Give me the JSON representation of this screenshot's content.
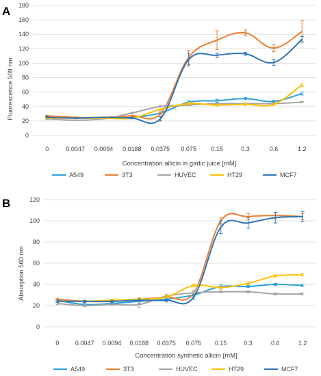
{
  "colors": {
    "A549": "#2f9fdc",
    "3T3": "#ee7d31",
    "HUVEC": "#a5a5a5",
    "HT29": "#ffc000",
    "MCF7": "#2e75b6",
    "grid": "#d9d9d9",
    "text": "#404040"
  },
  "chart_data": [
    {
      "type": "line",
      "panel_label": "A",
      "xlabel": "Concentration allicin in garlic juice [mM]",
      "ylabel": "Fluorescence 509 nm",
      "categories": [
        "0",
        "0.0047",
        "0.0094",
        "0.0188",
        "0.0375",
        "0.075",
        "0.15",
        "0.3",
        "0.6",
        "1.2"
      ],
      "ylim": [
        0,
        180
      ],
      "yticks": [
        0,
        20,
        40,
        60,
        80,
        100,
        120,
        140,
        160,
        180
      ],
      "grid": true,
      "legend_position": "bottom",
      "series": [
        {
          "name": "A549",
          "values": [
            26,
            24,
            24,
            25,
            31,
            46,
            48,
            51,
            47,
            58
          ],
          "errors": [
            1,
            0.5,
            0.5,
            1,
            1.5,
            2,
            2,
            1.5,
            1.5,
            2
          ]
        },
        {
          "name": "3T3",
          "values": [
            27,
            25,
            25,
            27,
            30,
            108,
            132,
            142,
            121,
            144
          ],
          "errors": [
            1,
            0.5,
            0.5,
            1,
            1.5,
            10,
            13,
            4,
            5,
            15
          ]
        },
        {
          "name": "HUVEC",
          "values": [
            23,
            21,
            23,
            31,
            40,
            42,
            44,
            44,
            44,
            46
          ],
          "errors": [
            1,
            0.5,
            0.5,
            1,
            1,
            1,
            1,
            1,
            1,
            1
          ]
        },
        {
          "name": "HT29",
          "values": [
            24,
            24,
            24,
            24,
            36,
            44,
            42,
            43,
            43,
            70
          ],
          "errors": [
            1,
            0.5,
            0.5,
            1,
            1,
            2,
            1.5,
            1.5,
            1.5,
            2
          ]
        },
        {
          "name": "MCF7",
          "values": [
            25,
            24,
            25,
            24,
            23,
            105,
            111,
            113,
            101,
            133
          ],
          "errors": [
            1,
            0.5,
            0.5,
            1,
            3,
            9,
            3,
            2,
            4,
            4
          ]
        }
      ]
    },
    {
      "type": "line",
      "panel_label": "B",
      "xlabel": "Concentration synthetic allicin [mM]",
      "ylabel": "Absorption 560 nm",
      "categories": [
        "0",
        "0.0047",
        "0.0094",
        "0.0188",
        "0.0375",
        "0.075",
        "0.15",
        "0.3",
        "0.6",
        "1.2"
      ],
      "ylim": [
        0,
        120
      ],
      "yticks": [
        0,
        20,
        40,
        60,
        80,
        100,
        120
      ],
      "grid": true,
      "legend_position": "bottom",
      "series": [
        {
          "name": "A549",
          "values": [
            25,
            21,
            22,
            24,
            26,
            30,
            38,
            38,
            40,
            39
          ],
          "errors": [
            1,
            1,
            1,
            2,
            1.5,
            1.5,
            1.5,
            1,
            1,
            1
          ]
        },
        {
          "name": "3T3",
          "values": [
            26,
            24,
            24,
            26,
            28,
            32,
            100,
            104,
            105,
            104
          ],
          "errors": [
            1,
            1,
            1,
            1.5,
            1.5,
            2,
            3,
            3,
            3,
            3
          ]
        },
        {
          "name": "HUVEC",
          "values": [
            22,
            20,
            21,
            21,
            29,
            32,
            33,
            33,
            31,
            31
          ],
          "errors": [
            1,
            1,
            1,
            3,
            1.5,
            1.5,
            1,
            1,
            1,
            1
          ]
        },
        {
          "name": "HT29",
          "values": [
            24,
            24,
            25,
            26,
            28,
            39,
            37,
            41,
            48,
            49
          ],
          "errors": [
            1,
            1,
            1,
            1.5,
            1.5,
            1.5,
            1.5,
            1.5,
            1,
            1
          ]
        },
        {
          "name": "MCF7",
          "values": [
            24,
            24,
            24,
            25,
            25,
            28,
            94,
            98,
            103,
            104
          ],
          "errors": [
            1,
            1,
            1,
            1.5,
            1.5,
            2,
            6,
            5,
            5,
            5
          ]
        }
      ]
    }
  ]
}
